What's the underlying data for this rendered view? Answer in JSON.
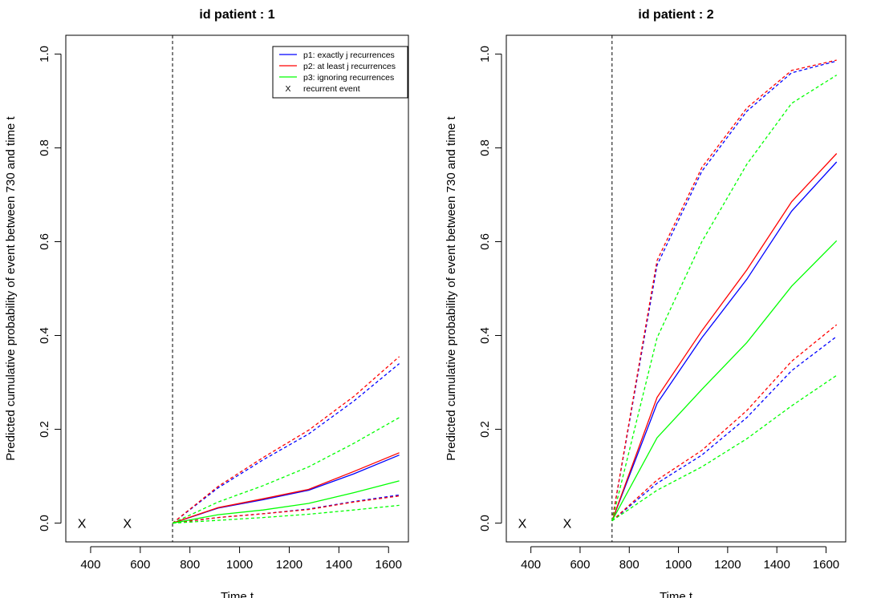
{
  "chart_data": [
    {
      "type": "line",
      "title": "id patient : 1",
      "xlabel": "Time t",
      "ylabel": "Predicted cumulative probability of event between 730 and time t",
      "xlim": [
        300,
        1680
      ],
      "ylim": [
        -0.04,
        1.04
      ],
      "xticks": [
        "400",
        "600",
        "800",
        "1000",
        "1200",
        "1400",
        "1600"
      ],
      "yticks": [
        "0.0",
        "0.2",
        "0.4",
        "0.6",
        "0.8",
        "1.0"
      ],
      "vline": 730,
      "recurrent_events": {
        "marker": "X",
        "x": [
          365,
          548
        ],
        "y": 0
      },
      "x": [
        730,
        913,
        1095,
        1278,
        1460,
        1643
      ],
      "series": [
        {
          "name": "p1: exactly j recurrences",
          "color": "#0000ff",
          "style": "solid",
          "values": [
            0.0,
            0.032,
            0.05,
            0.07,
            0.105,
            0.145
          ]
        },
        {
          "color": "#0000ff",
          "style": "dashed",
          "values": [
            0.0,
            0.075,
            0.135,
            0.19,
            0.26,
            0.34
          ]
        },
        {
          "color": "#0000ff",
          "style": "dashed",
          "values": [
            0.0,
            0.012,
            0.02,
            0.03,
            0.046,
            0.06
          ]
        },
        {
          "name": "p2: at least j recurrences",
          "color": "#ff0000",
          "style": "solid",
          "values": [
            0.0,
            0.033,
            0.052,
            0.072,
            0.11,
            0.15
          ]
        },
        {
          "color": "#ff0000",
          "style": "dashed",
          "values": [
            0.0,
            0.078,
            0.14,
            0.198,
            0.27,
            0.355
          ]
        },
        {
          "color": "#ff0000",
          "style": "dashed",
          "values": [
            0.0,
            0.012,
            0.02,
            0.029,
            0.045,
            0.058
          ]
        },
        {
          "name": "p3: ignoring recurrences",
          "color": "#00ff00",
          "style": "solid",
          "values": [
            0.0,
            0.018,
            0.028,
            0.042,
            0.065,
            0.09
          ]
        },
        {
          "color": "#00ff00",
          "style": "dashed",
          "values": [
            0.0,
            0.045,
            0.08,
            0.12,
            0.17,
            0.225
          ]
        },
        {
          "color": "#00ff00",
          "style": "dashed",
          "values": [
            0.0,
            0.006,
            0.012,
            0.019,
            0.028,
            0.038
          ]
        }
      ],
      "legend": {
        "placement": "top-right",
        "entries": [
          {
            "label": "p1: exactly j recurrences",
            "color": "#0000ff",
            "symbol": "line"
          },
          {
            "label": "p2: at least j recurrences",
            "color": "#ff0000",
            "symbol": "line"
          },
          {
            "label": "p3: ignoring recurrences",
            "color": "#00ff00",
            "symbol": "line"
          },
          {
            "label": "recurrent event",
            "color": "#000000",
            "symbol": "X"
          }
        ]
      }
    },
    {
      "type": "line",
      "title": "id patient : 2",
      "xlabel": "Time t",
      "ylabel": "Predicted cumulative probability of event between 730 and time t",
      "xlim": [
        300,
        1680
      ],
      "ylim": [
        -0.04,
        1.04
      ],
      "xticks": [
        "400",
        "600",
        "800",
        "1000",
        "1200",
        "1400",
        "1600"
      ],
      "yticks": [
        "0.0",
        "0.2",
        "0.4",
        "0.6",
        "0.8",
        "1.0"
      ],
      "vline": 730,
      "recurrent_events": {
        "marker": "X",
        "x": [
          365,
          548
        ],
        "y": 0
      },
      "x": [
        730,
        913,
        1095,
        1278,
        1460,
        1643
      ],
      "series": [
        {
          "color": "#0000ff",
          "style": "solid",
          "values": [
            0.005,
            0.255,
            0.395,
            0.52,
            0.665,
            0.77
          ]
        },
        {
          "color": "#0000ff",
          "style": "dashed",
          "values": [
            0.005,
            0.55,
            0.75,
            0.878,
            0.96,
            0.985
          ]
        },
        {
          "color": "#0000ff",
          "style": "dashed",
          "values": [
            0.005,
            0.085,
            0.145,
            0.225,
            0.325,
            0.398
          ]
        },
        {
          "color": "#ff0000",
          "style": "solid",
          "values": [
            0.005,
            0.268,
            0.41,
            0.54,
            0.685,
            0.788
          ]
        },
        {
          "color": "#ff0000",
          "style": "dashed",
          "values": [
            0.005,
            0.56,
            0.758,
            0.885,
            0.965,
            0.987
          ]
        },
        {
          "color": "#ff0000",
          "style": "dashed",
          "values": [
            0.005,
            0.092,
            0.155,
            0.24,
            0.345,
            0.423
          ]
        },
        {
          "color": "#00ff00",
          "style": "solid",
          "values": [
            0.005,
            0.182,
            0.285,
            0.385,
            0.505,
            0.602
          ]
        },
        {
          "color": "#00ff00",
          "style": "dashed",
          "values": [
            0.005,
            0.395,
            0.6,
            0.765,
            0.895,
            0.955
          ]
        },
        {
          "color": "#00ff00",
          "style": "dashed",
          "values": [
            0.005,
            0.07,
            0.12,
            0.18,
            0.25,
            0.315
          ]
        }
      ]
    }
  ]
}
